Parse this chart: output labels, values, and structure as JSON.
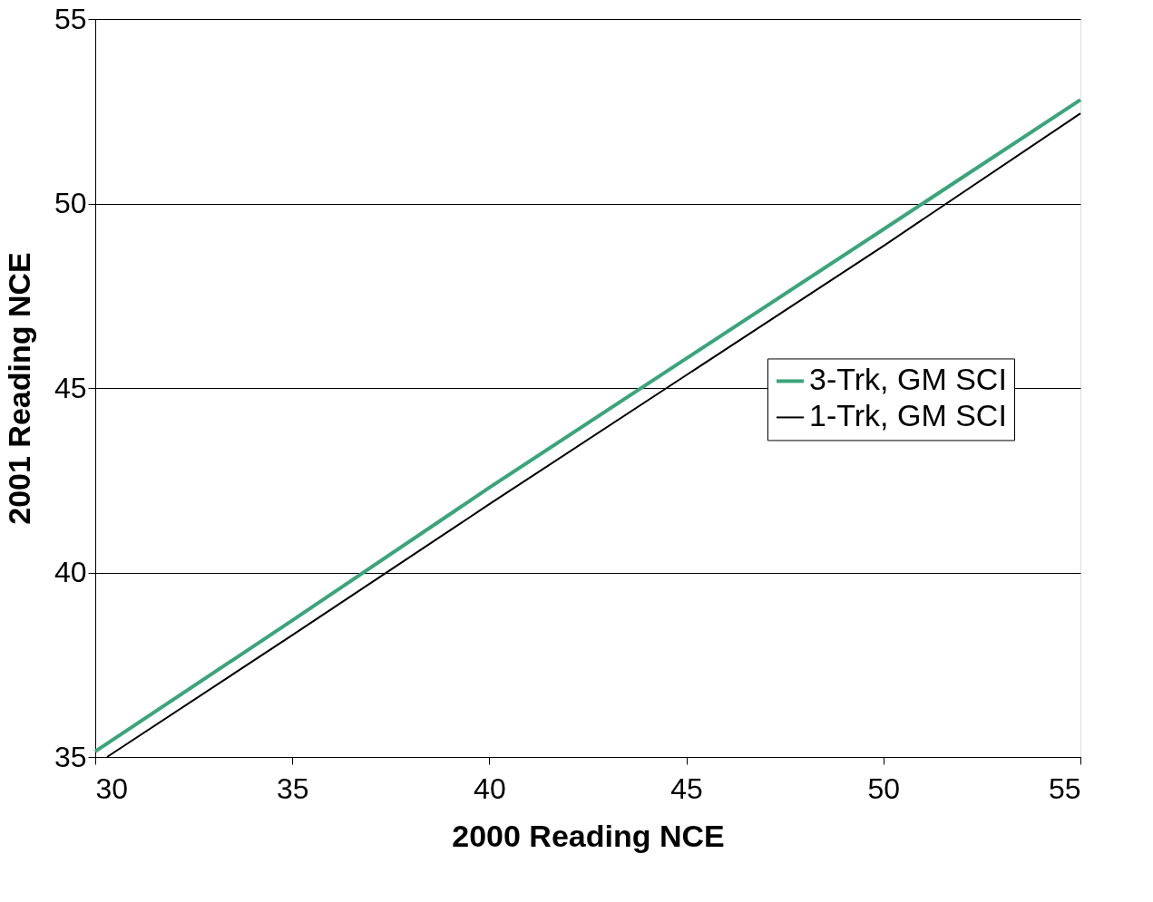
{
  "chart_data": {
    "type": "line",
    "xlabel": "2000 Reading NCE",
    "ylabel": "2001 Reading NCE",
    "series": [
      {
        "name": "3-Trk, GM SCI",
        "color": "#3aa57a",
        "x": [
          30,
          35,
          40,
          45,
          50,
          55
        ],
        "values": [
          35.15,
          38.7,
          42.3,
          45.8,
          49.3,
          52.81
        ]
      },
      {
        "name": "1-Trk, GM SCI",
        "color": "#000000",
        "x": [
          30.3,
          35,
          40,
          45,
          50,
          55
        ],
        "values": [
          35,
          38.3,
          41.85,
          45.35,
          48.85,
          52.44
        ]
      }
    ],
    "xlim": [
      30,
      55
    ],
    "xticks": [
      30,
      35,
      40,
      45,
      50,
      55
    ],
    "ylim": [
      35,
      55
    ],
    "yticks": [
      35,
      40,
      45,
      50,
      55
    ],
    "grid": "y",
    "legend": "right",
    "marker": "none",
    "line_style": "solid"
  }
}
